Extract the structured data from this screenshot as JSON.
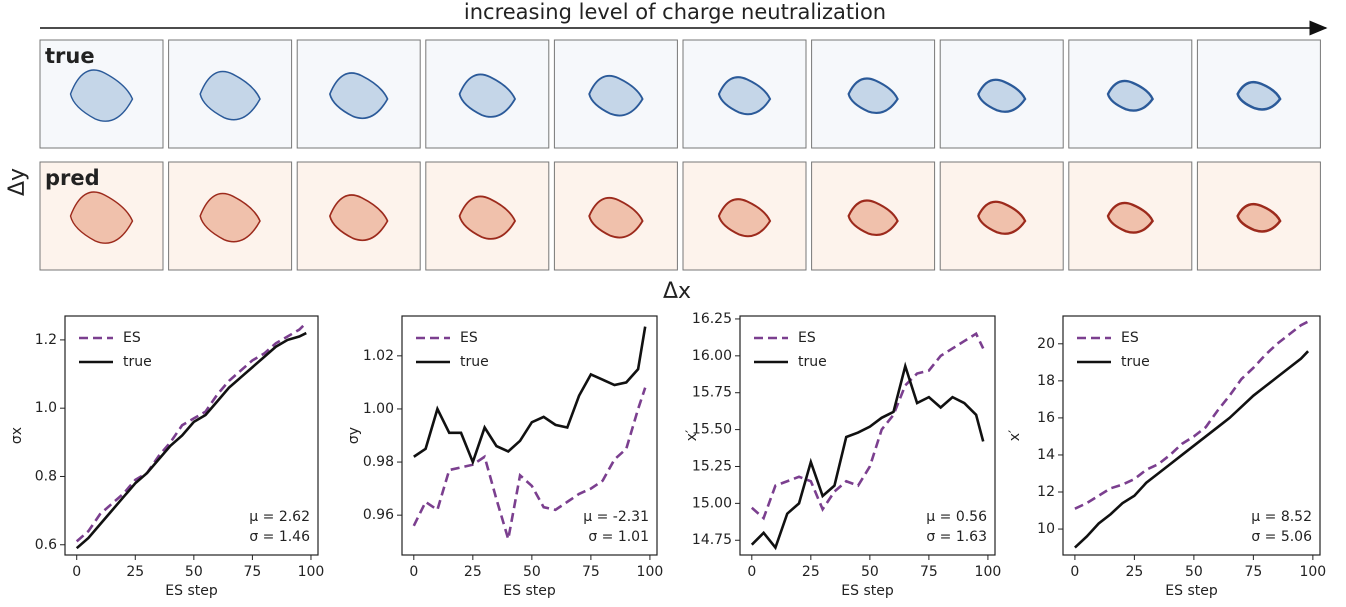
{
  "figure": {
    "title": "increasing level of charge neutralization",
    "row_labels": [
      "true",
      "pred"
    ],
    "y_label": "Δy",
    "x_label": "Δx"
  },
  "chart_data": [
    {
      "type": "line",
      "ylabel": "σx",
      "xlabel": "ES step",
      "x": [
        0,
        5,
        10,
        15,
        20,
        25,
        30,
        35,
        40,
        45,
        50,
        55,
        60,
        65,
        70,
        75,
        80,
        85,
        90,
        95,
        98
      ],
      "xlim": [
        -5,
        103
      ],
      "xticks": [
        0,
        25,
        50,
        75,
        100
      ],
      "ylim": [
        0.57,
        1.27
      ],
      "yticks": [
        0.6,
        0.8,
        {
          "value": 1.0,
          "label": "1.0"
        },
        1.2
      ],
      "series": [
        {
          "name": "ES",
          "color": "#7b3f8f",
          "dash": true,
          "values": [
            0.61,
            0.64,
            0.69,
            0.72,
            0.75,
            0.79,
            0.81,
            0.86,
            0.9,
            0.95,
            0.97,
            0.99,
            1.04,
            1.08,
            1.11,
            1.14,
            1.16,
            1.19,
            1.21,
            1.23,
            1.25
          ]
        },
        {
          "name": "true",
          "color": "#111111",
          "dash": false,
          "values": [
            0.59,
            0.62,
            0.66,
            0.7,
            0.74,
            0.78,
            0.81,
            0.85,
            0.89,
            0.92,
            0.96,
            0.98,
            1.02,
            1.06,
            1.09,
            1.12,
            1.15,
            1.18,
            1.2,
            1.21,
            1.22
          ]
        }
      ],
      "annotations": [
        "μ = 2.62",
        "σ = 1.46"
      ]
    },
    {
      "type": "line",
      "ylabel": "σy",
      "xlabel": "ES step",
      "x": [
        0,
        5,
        10,
        15,
        20,
        25,
        30,
        35,
        40,
        45,
        50,
        55,
        60,
        65,
        70,
        75,
        80,
        85,
        90,
        95,
        98
      ],
      "xlim": [
        -5,
        103
      ],
      "xticks": [
        0,
        25,
        50,
        75,
        100
      ],
      "ylim": [
        0.945,
        1.035
      ],
      "yticks": [
        0.96,
        0.98,
        {
          "value": 1.0,
          "label": "1.00"
        },
        1.02
      ],
      "series": [
        {
          "name": "ES",
          "color": "#7b3f8f",
          "dash": true,
          "values": [
            0.956,
            0.965,
            0.962,
            0.977,
            0.978,
            0.979,
            0.982,
            0.966,
            0.951,
            0.975,
            0.971,
            0.963,
            0.962,
            0.965,
            0.968,
            0.97,
            0.973,
            0.981,
            0.985,
            1.0,
            1.008
          ]
        },
        {
          "name": "true",
          "color": "#111111",
          "dash": false,
          "values": [
            0.982,
            0.985,
            1.0,
            0.991,
            0.991,
            0.98,
            0.993,
            0.986,
            0.984,
            0.988,
            0.995,
            0.997,
            0.994,
            0.993,
            1.005,
            1.013,
            1.011,
            1.009,
            1.01,
            1.015,
            1.031
          ]
        }
      ],
      "annotations": [
        "μ = -2.31",
        "σ = 1.01"
      ]
    },
    {
      "type": "line",
      "ylabel": "x′",
      "xlabel": "ES step",
      "x": [
        0,
        5,
        10,
        15,
        20,
        25,
        30,
        35,
        40,
        45,
        50,
        55,
        60,
        65,
        70,
        75,
        80,
        85,
        90,
        95,
        98
      ],
      "xlim": [
        -5,
        103
      ],
      "xticks": [
        0,
        25,
        50,
        75,
        100
      ],
      "ylim": [
        14.65,
        16.27
      ],
      "yticks": [
        14.75,
        {
          "value": 15.0,
          "label": "15.00"
        },
        15.25,
        {
          "value": 15.5,
          "label": "15.50"
        },
        15.75,
        {
          "value": 16.0,
          "label": "16.00"
        },
        16.25
      ],
      "series": [
        {
          "name": "ES",
          "color": "#7b3f8f",
          "dash": true,
          "values": [
            14.97,
            14.9,
            15.12,
            15.15,
            15.18,
            15.15,
            14.96,
            15.08,
            15.15,
            15.12,
            15.25,
            15.5,
            15.6,
            15.8,
            15.88,
            15.9,
            16.0,
            16.05,
            16.1,
            16.15,
            16.05
          ]
        },
        {
          "name": "true",
          "color": "#111111",
          "dash": false,
          "values": [
            14.72,
            14.8,
            14.7,
            14.93,
            15.0,
            15.28,
            15.05,
            15.12,
            15.45,
            15.48,
            15.52,
            15.58,
            15.62,
            15.93,
            15.68,
            15.72,
            15.65,
            15.72,
            15.68,
            15.6,
            15.42
          ]
        }
      ],
      "annotations": [
        "μ = 0.56",
        "σ = 1.63"
      ]
    },
    {
      "type": "line",
      "ylabel": "x′",
      "xlabel": "ES step",
      "x": [
        0,
        5,
        10,
        15,
        20,
        25,
        30,
        35,
        40,
        45,
        50,
        55,
        60,
        65,
        70,
        75,
        80,
        85,
        90,
        95,
        98
      ],
      "xlim": [
        -5,
        103
      ],
      "xticks": [
        0,
        25,
        50,
        75,
        100
      ],
      "ylim": [
        8.6,
        21.5
      ],
      "yticks": [
        10,
        12,
        14,
        16,
        18,
        20
      ],
      "series": [
        {
          "name": "ES",
          "color": "#7b3f8f",
          "dash": true,
          "values": [
            11.1,
            11.4,
            11.8,
            12.2,
            12.4,
            12.7,
            13.2,
            13.5,
            14.0,
            14.6,
            15.0,
            15.5,
            16.4,
            17.2,
            18.1,
            18.7,
            19.4,
            20.0,
            20.5,
            21.0,
            21.2
          ]
        },
        {
          "name": "true",
          "color": "#111111",
          "dash": false,
          "values": [
            9.0,
            9.6,
            10.3,
            10.8,
            11.4,
            11.8,
            12.5,
            13.0,
            13.5,
            14.0,
            14.5,
            15.0,
            15.5,
            16.0,
            16.6,
            17.2,
            17.7,
            18.2,
            18.7,
            19.2,
            19.6
          ]
        }
      ],
      "annotations": [
        "μ = 8.52",
        "σ = 5.06"
      ]
    }
  ]
}
